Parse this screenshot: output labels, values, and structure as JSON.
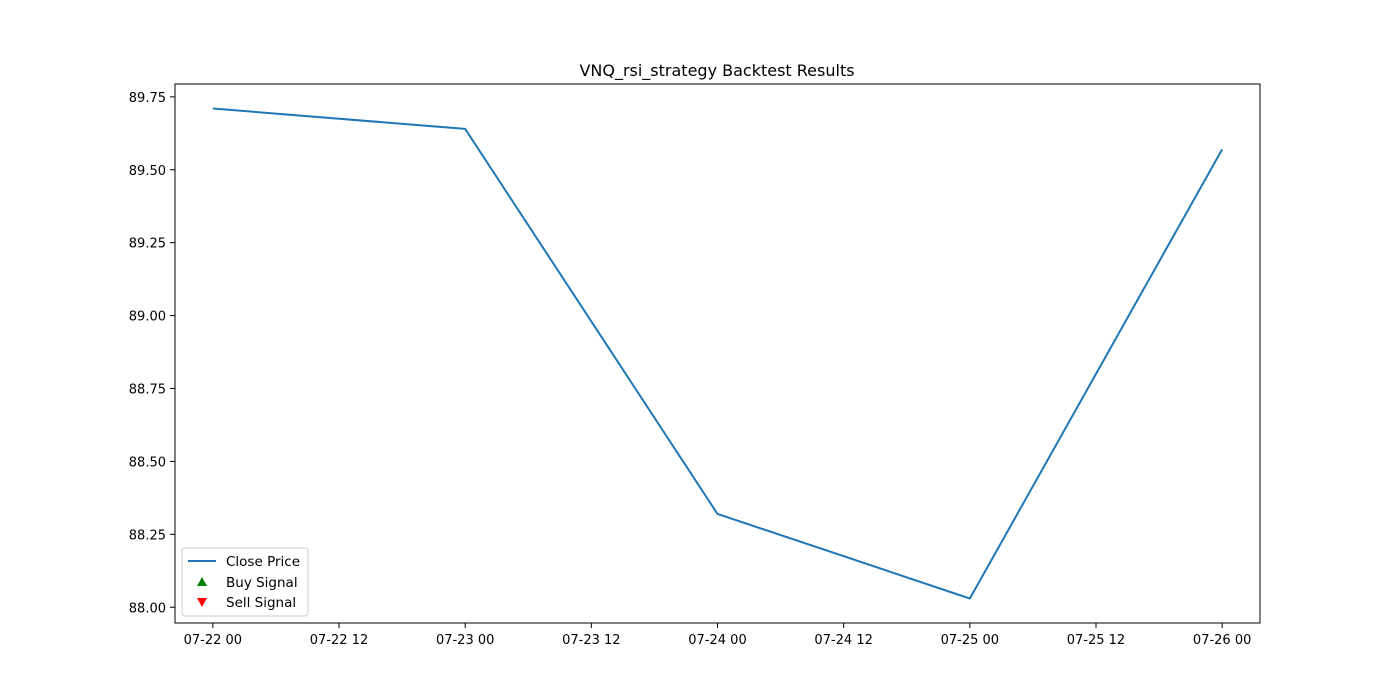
{
  "chart_data": {
    "type": "line",
    "title": "VNQ_rsi_strategy Backtest Results",
    "xlabel": "",
    "ylabel": "",
    "x_axis": {
      "type": "datetime",
      "range": [
        "2024-07-21T20:24:00",
        "2024-07-26T03:36:00"
      ],
      "ticks": [
        {
          "value": "2024-07-22T00:00:00",
          "label": "07-22 00"
        },
        {
          "value": "2024-07-22T12:00:00",
          "label": "07-22 12"
        },
        {
          "value": "2024-07-23T00:00:00",
          "label": "07-23 00"
        },
        {
          "value": "2024-07-23T12:00:00",
          "label": "07-23 12"
        },
        {
          "value": "2024-07-24T00:00:00",
          "label": "07-24 00"
        },
        {
          "value": "2024-07-24T12:00:00",
          "label": "07-24 12"
        },
        {
          "value": "2024-07-25T00:00:00",
          "label": "07-25 00"
        },
        {
          "value": "2024-07-25T12:00:00",
          "label": "07-25 12"
        },
        {
          "value": "2024-07-26T00:00:00",
          "label": "07-26 00"
        }
      ]
    },
    "y_axis": {
      "range": [
        87.946,
        89.794
      ],
      "ticks": [
        {
          "value": 88.0,
          "label": "88.00"
        },
        {
          "value": 88.25,
          "label": "88.25"
        },
        {
          "value": 88.5,
          "label": "88.50"
        },
        {
          "value": 88.75,
          "label": "88.75"
        },
        {
          "value": 89.0,
          "label": "89.00"
        },
        {
          "value": 89.25,
          "label": "89.25"
        },
        {
          "value": 89.5,
          "label": "89.50"
        },
        {
          "value": 89.75,
          "label": "89.75"
        }
      ]
    },
    "grid": false,
    "legend": {
      "placement": "lower-left",
      "entries": [
        {
          "label": "Close Price",
          "marker": "line",
          "color": "#1f77b4"
        },
        {
          "label": "Buy Signal",
          "marker": "triangle-up",
          "color": "#008000"
        },
        {
          "label": "Sell Signal",
          "marker": "triangle-down",
          "color": "#ff0000"
        }
      ]
    },
    "series": [
      {
        "name": "Close Price",
        "color": "#1f77b4",
        "points": [
          {
            "x": "2024-07-22T00:00:00",
            "y": 89.71
          },
          {
            "x": "2024-07-23T00:00:00",
            "y": 89.64
          },
          {
            "x": "2024-07-24T00:00:00",
            "y": 88.32
          },
          {
            "x": "2024-07-25T00:00:00",
            "y": 88.03
          },
          {
            "x": "2024-07-26T00:00:00",
            "y": 89.57
          }
        ]
      },
      {
        "name": "Buy Signal",
        "color": "#008000",
        "marker": "triangle-up",
        "points": []
      },
      {
        "name": "Sell Signal",
        "color": "#ff0000",
        "marker": "triangle-down",
        "points": []
      }
    ]
  }
}
